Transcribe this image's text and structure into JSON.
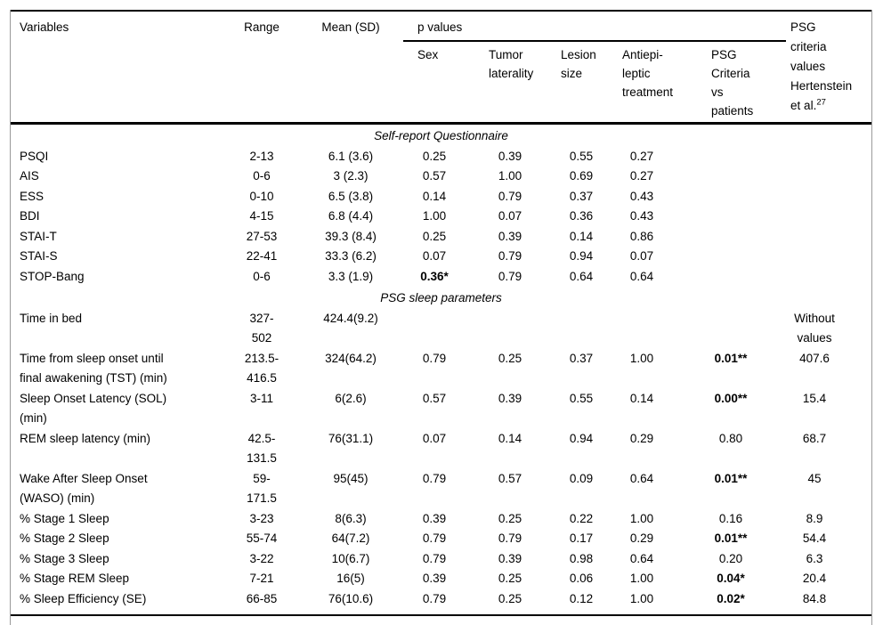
{
  "table": {
    "header": {
      "variables": "Variables",
      "range": "Range",
      "mean_sd": "Mean (SD)",
      "p_values_label": "p values",
      "p_subheaders": [
        "Sex",
        "Tumor\nlaterality",
        "Lesion\nsize",
        "Antiepi-\nleptic\ntreatment",
        "PSG\nCriteria\nvs\npatients"
      ],
      "psg_criteria_label": "PSG\ncriteria\nvalues\nHertenstein\net al.",
      "psg_criteria_sup": "27"
    },
    "column_ids": [
      "variable",
      "range",
      "mean-sd",
      "p-sex",
      "p-tumor-laterality",
      "p-lesion-size",
      "p-antiepileptic-treatment",
      "p-psg-criteria-vs-patients",
      "psg-criteria-value"
    ],
    "sections": [
      {
        "title": "Self-report Questionnaire",
        "rows": [
          {
            "cells": [
              "PSQI",
              "2-13",
              "6.1 (3.6)",
              "0.25",
              "0.39",
              "0.55",
              "0.27",
              "",
              ""
            ],
            "bold": []
          },
          {
            "cells": [
              "AIS",
              "0-6",
              "3 (2.3)",
              "0.57",
              "1.00",
              "0.69",
              "0.27",
              "",
              ""
            ],
            "bold": []
          },
          {
            "cells": [
              "ESS",
              "0-10",
              "6.5 (3.8)",
              "0.14",
              "0.79",
              "0.37",
              "0.43",
              "",
              ""
            ],
            "bold": []
          },
          {
            "cells": [
              "BDI",
              "4-15",
              "6.8 (4.4)",
              "1.00",
              "0.07",
              "0.36",
              "0.43",
              "",
              ""
            ],
            "bold": []
          },
          {
            "cells": [
              "STAI-T",
              "27-53",
              "39.3 (8.4)",
              "0.25",
              "0.39",
              "0.14",
              "0.86",
              "",
              ""
            ],
            "bold": []
          },
          {
            "cells": [
              "STAI-S",
              "22-41",
              "33.3 (6.2)",
              "0.07",
              "0.79",
              "0.94",
              "0.07",
              "",
              ""
            ],
            "bold": []
          },
          {
            "cells": [
              "STOP-Bang",
              "0-6",
              "3.3 (1.9)",
              "0.36*",
              "0.79",
              "0.64",
              "0.64",
              "",
              ""
            ],
            "bold": [
              3
            ]
          }
        ]
      },
      {
        "title": "PSG sleep parameters",
        "rows": [
          {
            "cells": [
              "Time in bed",
              "327-\n502",
              "424.4(9.2)",
              "",
              "",
              "",
              "",
              "",
              "Without\nvalues"
            ],
            "bold": []
          },
          {
            "cells": [
              "Time from sleep onset until\nfinal awakening (TST) (min)",
              "213.5-\n416.5",
              "324(64.2)",
              "0.79",
              "0.25",
              "0.37",
              "1.00",
              "0.01**",
              "407.6"
            ],
            "bold": [
              7
            ]
          },
          {
            "cells": [
              "Sleep Onset Latency (SOL)\n(min)",
              "3-11",
              "6(2.6)",
              "0.57",
              "0.39",
              "0.55",
              "0.14",
              "0.00**",
              "15.4"
            ],
            "bold": [
              7
            ]
          },
          {
            "cells": [
              "REM sleep latency (min)",
              "42.5-\n131.5",
              "76(31.1)",
              "0.07",
              "0.14",
              "0.94",
              "0.29",
              "0.80",
              "68.7"
            ],
            "bold": []
          },
          {
            "cells": [
              "Wake After Sleep Onset\n(WASO) (min)",
              "59-\n171.5",
              "95(45)",
              "0.79",
              "0.57",
              "0.09",
              "0.64",
              "0.01**",
              "45"
            ],
            "bold": [
              7
            ]
          },
          {
            "cells": [
              "% Stage 1 Sleep",
              "3-23",
              "8(6.3)",
              "0.39",
              "0.25",
              "0.22",
              "1.00",
              "0.16",
              "8.9"
            ],
            "bold": []
          },
          {
            "cells": [
              "% Stage 2 Sleep",
              "55-74",
              "64(7.2)",
              "0.79",
              "0.79",
              "0.17",
              "0.29",
              "0.01**",
              "54.4"
            ],
            "bold": [
              7
            ]
          },
          {
            "cells": [
              "% Stage 3 Sleep",
              "3-22",
              "10(6.7)",
              "0.79",
              "0.39",
              "0.98",
              "0.64",
              "0.20",
              "6.3"
            ],
            "bold": []
          },
          {
            "cells": [
              "% Stage REM Sleep",
              "7-21",
              "16(5)",
              "0.39",
              "0.25",
              "0.06",
              "1.00",
              "0.04*",
              "20.4"
            ],
            "bold": [
              7
            ]
          },
          {
            "cells": [
              "% Sleep Efficiency (SE)",
              "66-85",
              "76(10.6)",
              "0.79",
              "0.25",
              "0.12",
              "1.00",
              "0.02*",
              "84.8"
            ],
            "bold": [
              7
            ]
          }
        ]
      }
    ]
  }
}
